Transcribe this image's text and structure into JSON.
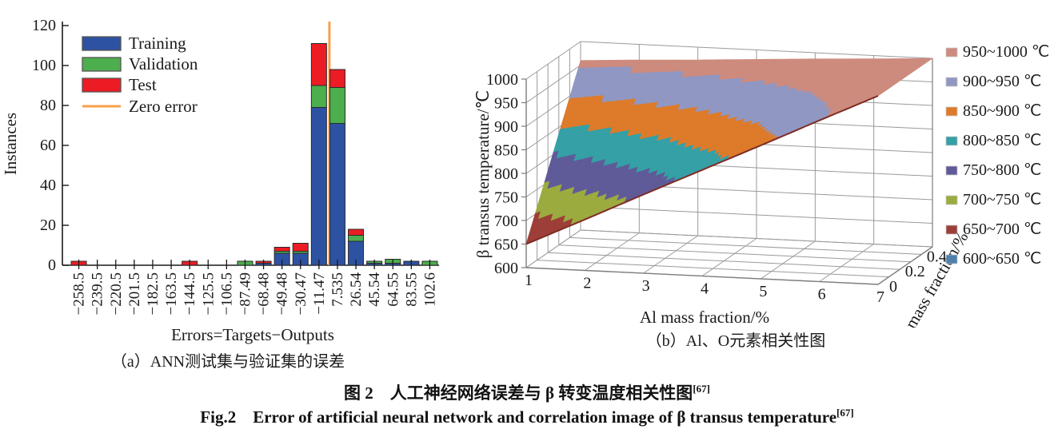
{
  "figure": {
    "caption_a": "（a）ANN测试集与验证集的误差",
    "caption_b": "（b）Al、O元素相关性图",
    "caption_zh": "图 2　人工神经网络误差与 β 转变温度相关性图",
    "caption_en": "Fig.2　Error of artificial neural network and correlation image of β transus temperature",
    "reference_marker": "[67]"
  },
  "chart_data": [
    {
      "id": "ann_error_histogram",
      "type": "bar",
      "stacked": true,
      "xlabel": "Errors=Targets−Outputs",
      "ylabel": "Instances",
      "ylim": [
        0,
        120
      ],
      "yticks": [
        0,
        20,
        40,
        60,
        80,
        100,
        120
      ],
      "grid": false,
      "legend_position": "upper-left",
      "categories": [
        "−258.5",
        "−239.5",
        "−220.5",
        "−201.5",
        "−182.5",
        "−163.5",
        "−144.5",
        "−125.5",
        "−106.5",
        "−87.49",
        "−68.48",
        "−49.48",
        "−30.47",
        "−11.47",
        "7.535",
        "26.54",
        "45.54",
        "64.55",
        "83.55",
        "102.6"
      ],
      "series": [
        {
          "name": "Training",
          "color": "#2e52a2",
          "values": [
            0,
            0,
            0,
            0,
            0,
            0,
            0,
            0,
            0,
            0,
            1,
            6,
            6,
            79,
            71,
            12,
            1,
            1,
            2,
            0
          ]
        },
        {
          "name": "Validation",
          "color": "#4cae4c",
          "values": [
            0,
            0,
            0,
            0,
            0,
            0,
            0,
            0,
            0,
            2,
            0,
            1,
            1,
            11,
            18,
            3,
            1,
            2,
            0,
            2
          ]
        },
        {
          "name": "Test",
          "color": "#ec1c24",
          "values": [
            2,
            0,
            0,
            0,
            0,
            0,
            2,
            0,
            0,
            0,
            1,
            2,
            4,
            21,
            9,
            3,
            0,
            0,
            0,
            0
          ]
        }
      ],
      "zero_line": {
        "label": "Zero error",
        "color": "#f9a04a",
        "x_value": 0,
        "between_bins": [
          "−11.47",
          "7.535"
        ]
      }
    },
    {
      "id": "al_o_surface",
      "type": "surface3d",
      "xlabel": "Al mass fraction/%",
      "ylabel": "O mass fraction/%",
      "zlabel": "β transus temperature/℃",
      "xticks": [
        1,
        2,
        3,
        4,
        5,
        6,
        7
      ],
      "yticks": [
        0,
        0.2,
        0.4
      ],
      "zticks": [
        600,
        650,
        700,
        750,
        800,
        850,
        900,
        950,
        1000
      ],
      "xlim": [
        1,
        7
      ],
      "ylim": [
        0,
        0.5
      ],
      "zlim": [
        600,
        1000
      ],
      "x": [
        1,
        2,
        3,
        4,
        5,
        6,
        7
      ],
      "y": [
        0,
        0.1,
        0.2,
        0.3,
        0.4,
        0.5
      ],
      "z": [
        [
          650,
          708,
          767,
          825,
          883,
          942,
          1000
        ],
        [
          712,
          760,
          808,
          856,
          904,
          952,
          1000
        ],
        [
          774,
          812,
          849,
          887,
          925,
          962,
          1000
        ],
        [
          836,
          863,
          891,
          918,
          945,
          973,
          1000
        ],
        [
          898,
          915,
          932,
          949,
          966,
          983,
          1000
        ],
        [
          960,
          967,
          973,
          980,
          987,
          993,
          1000
        ]
      ],
      "bands": [
        {
          "label": "950~1000 ℃",
          "color": "#cd8b7e"
        },
        {
          "label": "900~950 ℃",
          "color": "#9097c2"
        },
        {
          "label": "850~900 ℃",
          "color": "#dd7b2a"
        },
        {
          "label": "800~850 ℃",
          "color": "#35a0a6"
        },
        {
          "label": "750~800 ℃",
          "color": "#5f5b99"
        },
        {
          "label": "700~750 ℃",
          "color": "#9cab3f"
        },
        {
          "label": "650~700 ℃",
          "color": "#9d3f38"
        },
        {
          "label": "600~650 ℃",
          "color": "#4e80ae"
        }
      ]
    }
  ]
}
